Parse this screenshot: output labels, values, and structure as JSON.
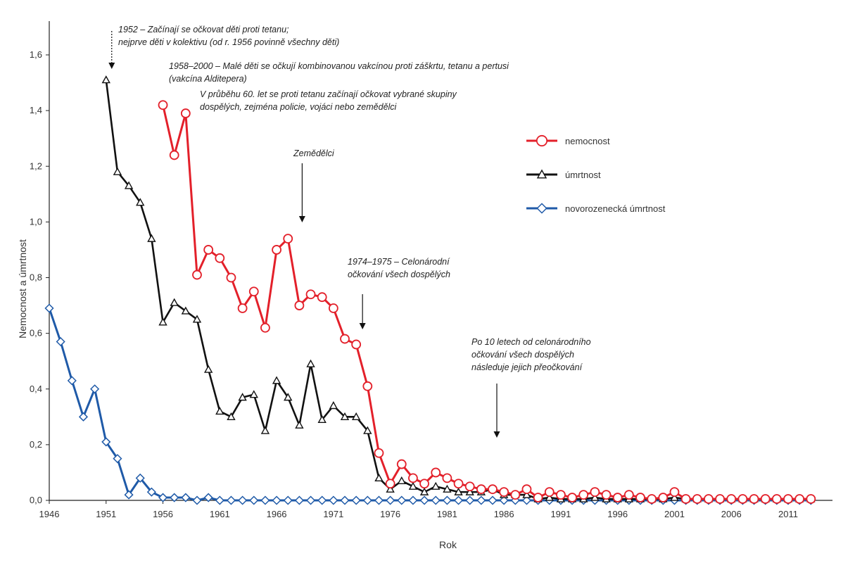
{
  "chart_data": {
    "type": "line",
    "xlabel": "Rok",
    "ylabel": "Nemocnost a úmrtnost",
    "xlim": [
      1946,
      2015
    ],
    "ylim": [
      0,
      1.6
    ],
    "x_ticks": [
      "1946",
      "1951",
      "1956",
      "1961",
      "1966",
      "1971",
      "1976",
      "1981",
      "1986",
      "1991",
      "1996",
      "2001",
      "2006",
      "2011"
    ],
    "y_ticks": [
      "0,0",
      "0,2",
      "0,4",
      "0,6",
      "0,8",
      "1,0",
      "1,2",
      "1,4",
      "1,6"
    ],
    "grid": false,
    "legend_position": "right",
    "series": [
      {
        "name": "nemocnost",
        "color": "#e3202a",
        "marker": "circle",
        "points": [
          [
            1956,
            1.42
          ],
          [
            1957,
            1.24
          ],
          [
            1958,
            1.39
          ],
          [
            1959,
            0.81
          ],
          [
            1960,
            0.9
          ],
          [
            1961,
            0.87
          ],
          [
            1962,
            0.8
          ],
          [
            1963,
            0.69
          ],
          [
            1964,
            0.75
          ],
          [
            1965,
            0.62
          ],
          [
            1966,
            0.9
          ],
          [
            1967,
            0.94
          ],
          [
            1968,
            0.7
          ],
          [
            1969,
            0.74
          ],
          [
            1970,
            0.73
          ],
          [
            1971,
            0.69
          ],
          [
            1972,
            0.58
          ],
          [
            1973,
            0.56
          ],
          [
            1974,
            0.41
          ],
          [
            1975,
            0.17
          ],
          [
            1976,
            0.06
          ],
          [
            1977,
            0.13
          ],
          [
            1978,
            0.08
          ],
          [
            1979,
            0.06
          ],
          [
            1980,
            0.1
          ],
          [
            1981,
            0.08
          ],
          [
            1982,
            0.06
          ],
          [
            1983,
            0.05
          ],
          [
            1984,
            0.04
          ],
          [
            1985,
            0.04
          ],
          [
            1986,
            0.03
          ],
          [
            1987,
            0.02
          ],
          [
            1988,
            0.04
          ],
          [
            1989,
            0.01
          ],
          [
            1990,
            0.03
          ],
          [
            1991,
            0.02
          ],
          [
            1992,
            0.01
          ],
          [
            1993,
            0.02
          ],
          [
            1994,
            0.03
          ],
          [
            1995,
            0.02
          ],
          [
            1996,
            0.01
          ],
          [
            1997,
            0.02
          ],
          [
            1998,
            0.01
          ],
          [
            1999,
            0.005
          ],
          [
            2000,
            0.01
          ],
          [
            2001,
            0.03
          ],
          [
            2002,
            0.005
          ],
          [
            2003,
            0.005
          ],
          [
            2004,
            0.005
          ],
          [
            2005,
            0.005
          ],
          [
            2006,
            0.005
          ],
          [
            2007,
            0.005
          ],
          [
            2008,
            0.005
          ],
          [
            2009,
            0.005
          ],
          [
            2010,
            0.005
          ],
          [
            2011,
            0.005
          ],
          [
            2012,
            0.005
          ],
          [
            2013,
            0.005
          ]
        ]
      },
      {
        "name": "úmrtnost",
        "color": "#111111",
        "marker": "triangle",
        "points": [
          [
            1951,
            1.51
          ],
          [
            1952,
            1.18
          ],
          [
            1953,
            1.13
          ],
          [
            1954,
            1.07
          ],
          [
            1955,
            0.94
          ],
          [
            1956,
            0.64
          ],
          [
            1957,
            0.71
          ],
          [
            1958,
            0.68
          ],
          [
            1959,
            0.65
          ],
          [
            1960,
            0.47
          ],
          [
            1961,
            0.32
          ],
          [
            1962,
            0.3
          ],
          [
            1963,
            0.37
          ],
          [
            1964,
            0.38
          ],
          [
            1965,
            0.25
          ],
          [
            1966,
            0.43
          ],
          [
            1967,
            0.37
          ],
          [
            1968,
            0.27
          ],
          [
            1969,
            0.49
          ],
          [
            1970,
            0.29
          ],
          [
            1971,
            0.34
          ],
          [
            1972,
            0.3
          ],
          [
            1973,
            0.3
          ],
          [
            1974,
            0.25
          ],
          [
            1975,
            0.08
          ],
          [
            1976,
            0.04
          ],
          [
            1977,
            0.07
          ],
          [
            1978,
            0.05
          ],
          [
            1979,
            0.03
          ],
          [
            1980,
            0.05
          ],
          [
            1981,
            0.04
          ],
          [
            1982,
            0.03
          ],
          [
            1983,
            0.03
          ],
          [
            1984,
            0.03
          ],
          [
            1985,
            0.04
          ],
          [
            1986,
            0.02
          ],
          [
            1987,
            0.02
          ],
          [
            1988,
            0.02
          ],
          [
            1989,
            0.005
          ],
          [
            1990,
            0.01
          ],
          [
            1991,
            0.005
          ],
          [
            1992,
            0.005
          ],
          [
            1993,
            0.005
          ],
          [
            1994,
            0.01
          ],
          [
            1995,
            0.005
          ],
          [
            1996,
            0.005
          ],
          [
            1997,
            0.005
          ],
          [
            1998,
            0.005
          ],
          [
            1999,
            0.005
          ],
          [
            2000,
            0.005
          ],
          [
            2001,
            0.01
          ],
          [
            2002,
            0.005
          ],
          [
            2003,
            0.005
          ],
          [
            2004,
            0.005
          ],
          [
            2005,
            0.005
          ],
          [
            2006,
            0.005
          ],
          [
            2007,
            0.005
          ],
          [
            2008,
            0.005
          ],
          [
            2009,
            0.005
          ],
          [
            2010,
            0.005
          ],
          [
            2011,
            0.005
          ],
          [
            2012,
            0.005
          ],
          [
            2013,
            0.005
          ]
        ]
      },
      {
        "name": "novorozenecká úmrtnost",
        "color": "#1f5aa8",
        "marker": "diamond",
        "points": [
          [
            1946,
            0.69
          ],
          [
            1947,
            0.57
          ],
          [
            1948,
            0.43
          ],
          [
            1949,
            0.3
          ],
          [
            1950,
            0.4
          ],
          [
            1951,
            0.21
          ],
          [
            1952,
            0.15
          ],
          [
            1953,
            0.02
          ],
          [
            1954,
            0.08
          ],
          [
            1955,
            0.03
          ],
          [
            1956,
            0.01
          ],
          [
            1957,
            0.01
          ],
          [
            1958,
            0.01
          ],
          [
            1959,
            0.0
          ],
          [
            1960,
            0.01
          ],
          [
            1961,
            0.0
          ],
          [
            1962,
            0.0
          ],
          [
            1963,
            0.0
          ],
          [
            1964,
            0.0
          ],
          [
            1965,
            0.0
          ],
          [
            1966,
            0.0
          ],
          [
            1967,
            0.0
          ],
          [
            1968,
            0.0
          ],
          [
            1969,
            0.0
          ],
          [
            1970,
            0.0
          ],
          [
            1971,
            0.0
          ],
          [
            1972,
            0.0
          ],
          [
            1973,
            0.0
          ],
          [
            1974,
            0.0
          ],
          [
            1975,
            0.0
          ],
          [
            1976,
            0.0
          ],
          [
            1977,
            0.0
          ],
          [
            1978,
            0.0
          ],
          [
            1979,
            0.0
          ],
          [
            1980,
            0.0
          ],
          [
            1981,
            0.0
          ],
          [
            1982,
            0.0
          ],
          [
            1983,
            0.0
          ],
          [
            1984,
            0.0
          ],
          [
            1985,
            0.0
          ],
          [
            1986,
            0.0
          ],
          [
            1987,
            0.0
          ],
          [
            1988,
            0.0
          ],
          [
            1989,
            0.0
          ],
          [
            1990,
            0.0
          ],
          [
            1991,
            0.0
          ],
          [
            1992,
            0.0
          ],
          [
            1993,
            0.0
          ],
          [
            1994,
            0.0
          ],
          [
            1995,
            0.0
          ],
          [
            1996,
            0.0
          ],
          [
            1997,
            0.0
          ],
          [
            1998,
            0.0
          ],
          [
            1999,
            0.0
          ],
          [
            2000,
            0.0
          ],
          [
            2001,
            0.0
          ],
          [
            2002,
            0.0
          ],
          [
            2003,
            0.0
          ],
          [
            2004,
            0.0
          ],
          [
            2005,
            0.0
          ],
          [
            2006,
            0.0
          ],
          [
            2007,
            0.0
          ],
          [
            2008,
            0.0
          ],
          [
            2009,
            0.0
          ],
          [
            2010,
            0.0
          ],
          [
            2011,
            0.0
          ],
          [
            2012,
            0.0
          ],
          [
            2013,
            0.0
          ]
        ]
      }
    ],
    "annotations": [
      {
        "lines": [
          "1952 – Začínají se očkovat děti proti tetanu;",
          "nejprve děti v kolektivu (od r. 1956 povinně všechny děti)"
        ],
        "arrow_x": 1951,
        "arrow_style": "dotted"
      },
      {
        "lines": [
          "1958–2000 – Malé děti se očkují kombinovanou vakcínou proti záškrtu, tetanu a pertusi",
          "(vakcína Alditepera)"
        ]
      },
      {
        "lines": [
          "V průběhu 60. let se proti tetanu začínají očkovat vybrané skupiny",
          "dospělých, zejména policie, vojáci nebo zemědělci"
        ]
      },
      {
        "lines": [
          "Zemědělci"
        ],
        "arrow_x": 1968
      },
      {
        "lines": [
          "1974–1975 – Celonárodní",
          "očkování všech dospělých"
        ],
        "arrow_x": 1973
      },
      {
        "lines": [
          "Po 10 letech od celonárodního",
          "očkování všech dospělých",
          "následuje jejich přeočkování"
        ],
        "arrow_x": 1985
      }
    ]
  }
}
